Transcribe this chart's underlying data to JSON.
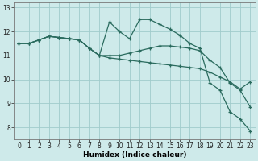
{
  "xlabel": "Humidex (Indice chaleur)",
  "background_color": "#ceeaea",
  "grid_color": "#a0cccc",
  "line_color": "#2a6b5e",
  "x_values": [
    0,
    1,
    2,
    3,
    4,
    5,
    6,
    7,
    8,
    9,
    10,
    11,
    12,
    13,
    14,
    15,
    16,
    17,
    18,
    19,
    20,
    21,
    22,
    23
  ],
  "series1": [
    11.5,
    11.5,
    11.65,
    11.8,
    11.75,
    11.7,
    11.65,
    11.3,
    11.0,
    10.9,
    10.85,
    10.8,
    10.75,
    10.7,
    10.65,
    10.6,
    10.55,
    10.5,
    10.45,
    10.3,
    10.1,
    9.9,
    9.6,
    9.9
  ],
  "series2": [
    11.5,
    11.5,
    11.65,
    11.8,
    11.75,
    11.7,
    11.65,
    11.3,
    11.0,
    12.4,
    12.0,
    11.7,
    12.5,
    12.5,
    12.3,
    12.1,
    11.85,
    11.5,
    11.3,
    9.85,
    9.55,
    8.65,
    8.35,
    7.85
  ],
  "series3": [
    11.5,
    11.5,
    11.65,
    11.8,
    11.75,
    11.7,
    11.65,
    11.3,
    11.0,
    11.0,
    11.0,
    11.1,
    11.2,
    11.3,
    11.4,
    11.4,
    11.35,
    11.3,
    11.2,
    10.8,
    10.5,
    9.85,
    9.55,
    8.85
  ],
  "ylim": [
    7.5,
    13.2
  ],
  "xlim": [
    -0.5,
    23.5
  ],
  "yticks": [
    8,
    9,
    10,
    11,
    12,
    13
  ],
  "xticks": [
    0,
    1,
    2,
    3,
    4,
    5,
    6,
    7,
    8,
    9,
    10,
    11,
    12,
    13,
    14,
    15,
    16,
    17,
    18,
    19,
    20,
    21,
    22,
    23
  ],
  "tick_fontsize": 5.5,
  "xlabel_fontsize": 6.5
}
